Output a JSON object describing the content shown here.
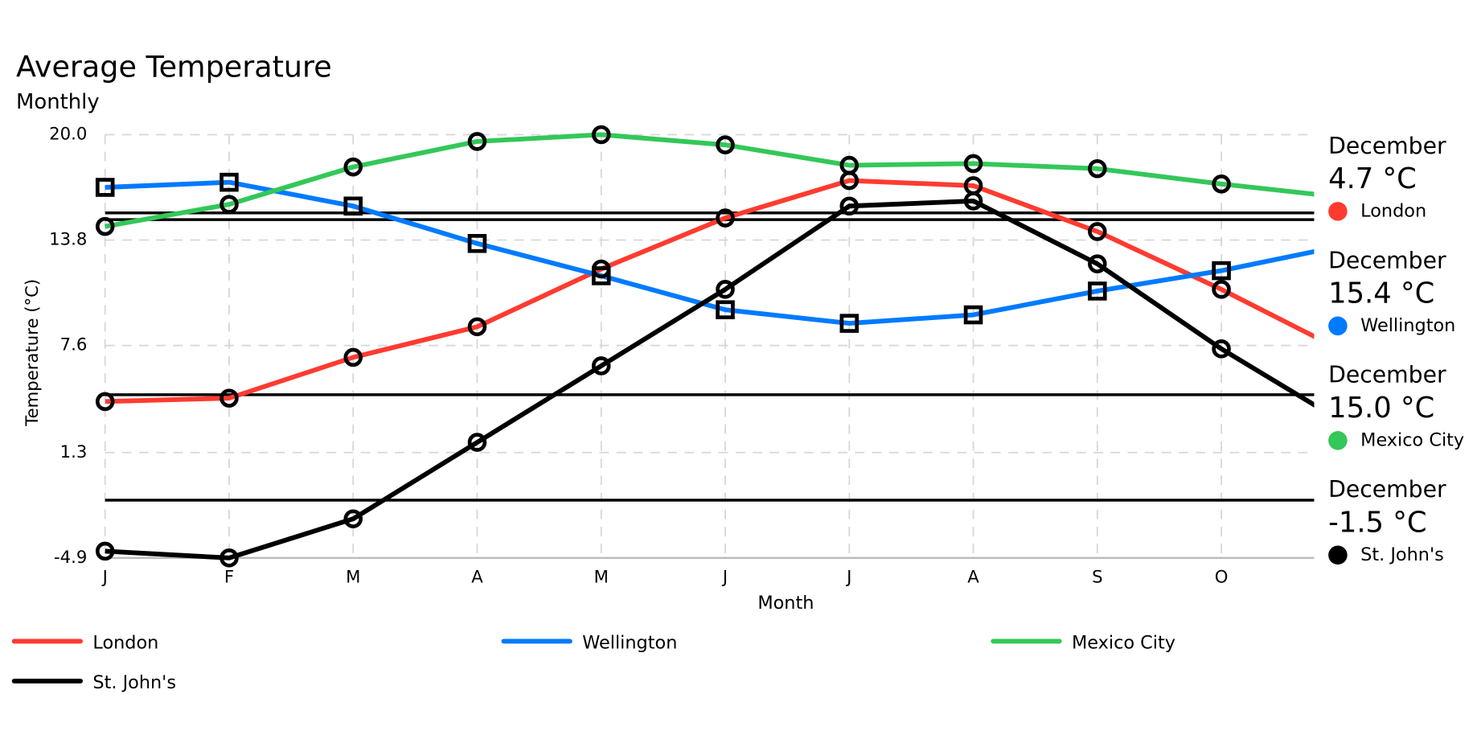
{
  "chart_data": {
    "type": "line",
    "title": "Average Temperature",
    "subtitle": "Monthly",
    "x_label": "Month",
    "y_label": "Temperature (°C)",
    "categories": [
      "J",
      "F",
      "M",
      "A",
      "M",
      "J",
      "J",
      "A",
      "S",
      "O",
      null,
      null
    ],
    "ylim": [
      -4.9,
      20.0
    ],
    "yticks": [
      {
        "value": 20.0,
        "label": "20.0"
      },
      13.8,
      7.6,
      1.3,
      -4.9
    ],
    "grid": true,
    "series": [
      {
        "name": "London",
        "color": "#ff3b30",
        "marker": "circle",
        "values": [
          4.3,
          4.5,
          6.9,
          8.7,
          12.1,
          15.1,
          17.3,
          17.0,
          14.3,
          10.9,
          7.2,
          4.7
        ]
      },
      {
        "name": "Wellington",
        "color": "#007aff",
        "marker": "square",
        "values": [
          16.9,
          17.2,
          15.8,
          13.6,
          11.7,
          9.7,
          8.9,
          9.4,
          10.8,
          12.0,
          13.5,
          15.4
        ]
      },
      {
        "name": "Mexico City",
        "color": "#34c759",
        "marker": "circle",
        "values": [
          14.6,
          15.9,
          18.1,
          19.6,
          20.0,
          19.4,
          18.2,
          18.3,
          18.0,
          17.1,
          16.3,
          15.0
        ]
      },
      {
        "name": "St. John's",
        "color": "#000000",
        "marker": "circle",
        "values": [
          -4.5,
          -4.9,
          -2.6,
          1.9,
          6.4,
          10.9,
          15.8,
          16.1,
          12.4,
          7.4,
          3.0,
          -1.5
        ]
      }
    ],
    "hover": {
      "label": "December",
      "value_labels": [
        "4.7 °C",
        "15.4 °C",
        "15.0 °C",
        "-1.5 °C"
      ]
    }
  }
}
